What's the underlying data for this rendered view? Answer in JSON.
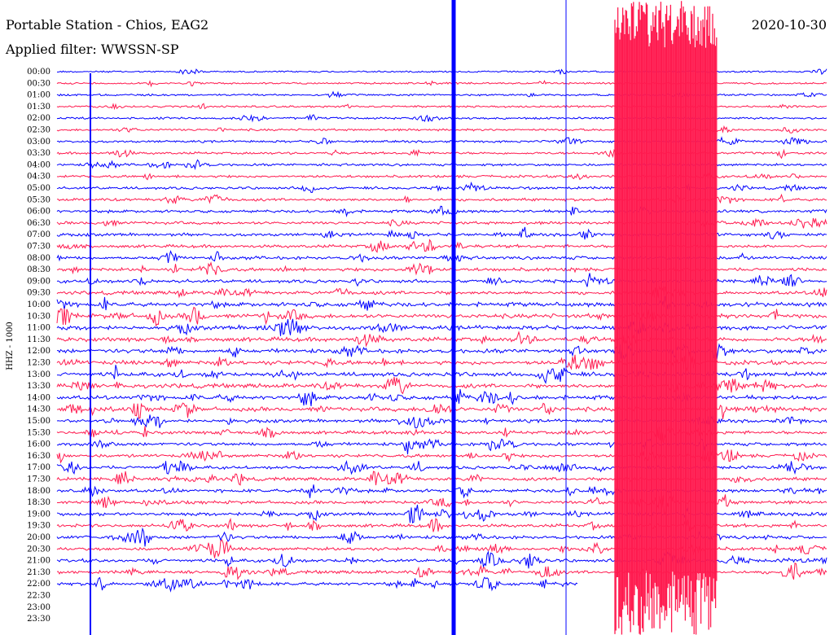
{
  "header": {
    "title": "Portable Station - Chios, EAG2",
    "date": "2020-10-30",
    "filter": "Applied filter: WWSSN-SP"
  },
  "channel_label": "HHZ - 1000",
  "rows": [
    "00:00",
    "00:30",
    "01:00",
    "01:30",
    "02:00",
    "02:30",
    "03:00",
    "03:30",
    "04:00",
    "04:30",
    "05:00",
    "05:30",
    "06:00",
    "06:30",
    "07:00",
    "07:30",
    "08:00",
    "08:30",
    "09:00",
    "09:30",
    "10:00",
    "10:30",
    "11:00",
    "11:30",
    "12:00",
    "12:30",
    "13:00",
    "13:30",
    "14:00",
    "14:30",
    "15:00",
    "15:30",
    "16:00",
    "16:30",
    "17:00",
    "17:30",
    "18:00",
    "18:30",
    "19:00",
    "19:30",
    "20:00",
    "20:30",
    "21:00",
    "21:30",
    "22:00",
    "22:30",
    "23:00",
    "23:30"
  ]
}
